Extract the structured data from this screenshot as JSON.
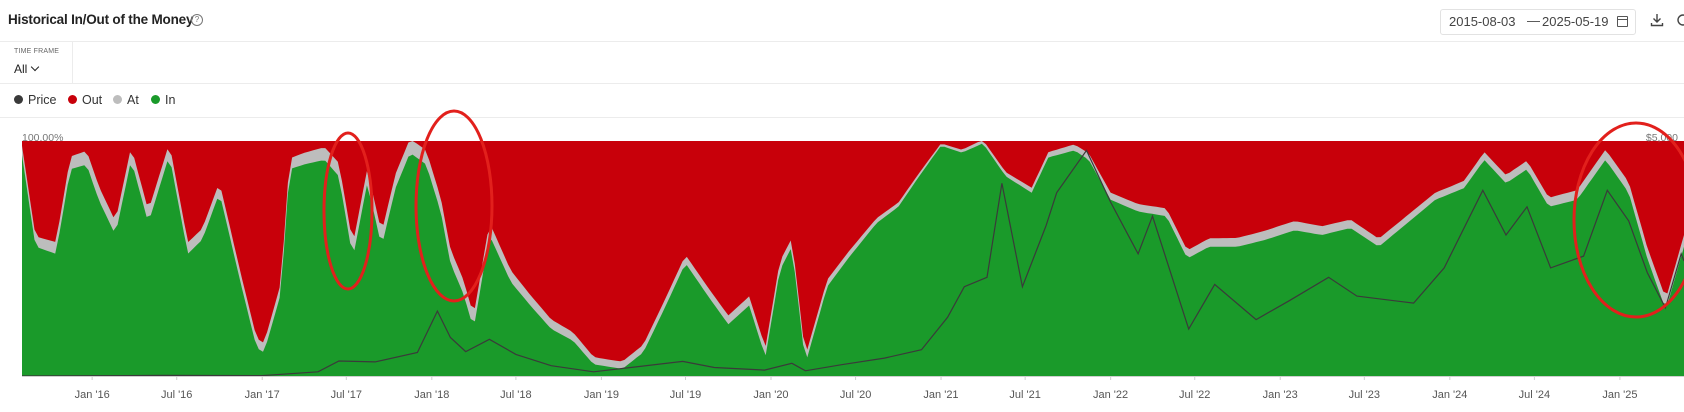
{
  "header": {
    "title": "Historical In/Out of the Money",
    "help_icon": "question-circle-icon",
    "date_start": "2015-08-03",
    "date_separator": "—",
    "date_end": "2025-05-19",
    "calendar_icon": "calendar-icon",
    "download_icon": "download-icon",
    "more_icon": "share-icon"
  },
  "controls": {
    "time_frame_label": "TIME FRAME",
    "time_frame_value": "All"
  },
  "legend": [
    {
      "label": "Price",
      "color": "#3a3a3a"
    },
    {
      "label": "Out",
      "color": "#c8000a"
    },
    {
      "label": "At",
      "color": "#bdbdbd"
    },
    {
      "label": "In",
      "color": "#1a9a2a"
    }
  ],
  "chart_data": {
    "type": "area",
    "stacking": "percent",
    "left_axis_top_label": "100.00%",
    "right_axis_top_label": "$5,000",
    "x_tick_labels": [
      "Jan '16",
      "Jul '16",
      "Jan '17",
      "Jul '17",
      "Jan '18",
      "Jul '18",
      "Jan '19",
      "Jul '19",
      "Jan '20",
      "Jul '20",
      "Jan '21",
      "Jul '21",
      "Jan '22",
      "Jul '22",
      "Jan '23",
      "Jul '23",
      "Jan '24",
      "Jul '24",
      "Jan '25"
    ],
    "x_range": [
      "2015-08-03",
      "2025-05-19"
    ],
    "y_range_percent": [
      0,
      100
    ],
    "colors": {
      "in": "#1a9a2a",
      "at": "#bdbdbd",
      "out": "#c8000a",
      "price": "#3a3a3a"
    },
    "series": [
      {
        "name": "In",
        "unit": "%",
        "points": [
          [
            "2015-08-03",
            94
          ],
          [
            "2015-09-01",
            55
          ],
          [
            "2015-10-15",
            52
          ],
          [
            "2015-11-15",
            88
          ],
          [
            "2015-12-20",
            90
          ],
          [
            "2016-01-15",
            75
          ],
          [
            "2016-02-20",
            60
          ],
          [
            "2016-03-25",
            92
          ],
          [
            "2016-05-01",
            65
          ],
          [
            "2016-06-15",
            94
          ],
          [
            "2016-07-25",
            52
          ],
          [
            "2016-08-25",
            58
          ],
          [
            "2016-10-01",
            78
          ],
          [
            "2016-11-15",
            40
          ],
          [
            "2016-12-20",
            12
          ],
          [
            "2017-01-05",
            10
          ],
          [
            "2017-02-10",
            35
          ],
          [
            "2017-03-01",
            88
          ],
          [
            "2017-04-01",
            90
          ],
          [
            "2017-05-15",
            92
          ],
          [
            "2017-06-15",
            85
          ],
          [
            "2017-07-15",
            50
          ],
          [
            "2017-08-15",
            82
          ],
          [
            "2017-09-15",
            55
          ],
          [
            "2017-10-15",
            80
          ],
          [
            "2017-11-15",
            95
          ],
          [
            "2017-12-20",
            90
          ],
          [
            "2018-01-20",
            70
          ],
          [
            "2018-02-10",
            48
          ],
          [
            "2018-03-10",
            35
          ],
          [
            "2018-04-01",
            20
          ],
          [
            "2018-05-05",
            60
          ],
          [
            "2018-06-20",
            40
          ],
          [
            "2018-08-01",
            30
          ],
          [
            "2018-09-15",
            20
          ],
          [
            "2018-11-01",
            15
          ],
          [
            "2018-12-15",
            5
          ],
          [
            "2019-01-15",
            4
          ],
          [
            "2019-02-15",
            3
          ],
          [
            "2019-04-01",
            10
          ],
          [
            "2019-05-15",
            28
          ],
          [
            "2019-07-01",
            48
          ],
          [
            "2019-08-15",
            35
          ],
          [
            "2019-10-01",
            22
          ],
          [
            "2019-11-15",
            30
          ],
          [
            "2019-12-20",
            8
          ],
          [
            "2020-01-20",
            45
          ],
          [
            "2020-02-15",
            55
          ],
          [
            "2020-03-15",
            5
          ],
          [
            "2020-05-01",
            38
          ],
          [
            "2020-06-15",
            50
          ],
          [
            "2020-08-15",
            65
          ],
          [
            "2020-10-01",
            72
          ],
          [
            "2020-11-15",
            85
          ],
          [
            "2021-01-01",
            98
          ],
          [
            "2021-02-15",
            95
          ],
          [
            "2021-04-01",
            99
          ],
          [
            "2021-05-20",
            85
          ],
          [
            "2021-07-15",
            78
          ],
          [
            "2021-08-20",
            93
          ],
          [
            "2021-10-15",
            96
          ],
          [
            "2021-11-15",
            92
          ],
          [
            "2022-01-01",
            75
          ],
          [
            "2022-03-01",
            70
          ],
          [
            "2022-05-01",
            68
          ],
          [
            "2022-06-15",
            50
          ],
          [
            "2022-08-01",
            55
          ],
          [
            "2022-10-01",
            55
          ],
          [
            "2022-12-01",
            58
          ],
          [
            "2023-02-01",
            62
          ],
          [
            "2023-04-01",
            60
          ],
          [
            "2023-06-01",
            63
          ],
          [
            "2023-08-01",
            55
          ],
          [
            "2023-10-01",
            65
          ],
          [
            "2023-12-01",
            75
          ],
          [
            "2024-02-01",
            80
          ],
          [
            "2024-03-15",
            92
          ],
          [
            "2024-05-01",
            82
          ],
          [
            "2024-06-15",
            88
          ],
          [
            "2024-08-01",
            72
          ],
          [
            "2024-10-01",
            75
          ],
          [
            "2024-12-01",
            92
          ],
          [
            "2025-01-20",
            78
          ],
          [
            "2025-03-01",
            50
          ],
          [
            "2025-04-10",
            28
          ],
          [
            "2025-05-19",
            55
          ]
        ]
      },
      {
        "name": "At",
        "unit": "%",
        "points": [
          [
            "2015-08-03",
            4
          ],
          [
            "2016-01-01",
            6
          ],
          [
            "2017-01-01",
            4
          ],
          [
            "2017-07-15",
            6
          ],
          [
            "2018-03-01",
            6
          ],
          [
            "2019-01-01",
            3
          ],
          [
            "2020-01-01",
            4
          ],
          [
            "2021-01-01",
            1
          ],
          [
            "2022-01-01",
            3
          ],
          [
            "2023-01-01",
            4
          ],
          [
            "2024-01-01",
            3
          ],
          [
            "2025-05-19",
            5
          ]
        ]
      },
      {
        "name": "Price",
        "unit": "USD",
        "points": [
          [
            "2015-08-03",
            1
          ],
          [
            "2016-06-01",
            12
          ],
          [
            "2017-01-01",
            8
          ],
          [
            "2017-05-01",
            90
          ],
          [
            "2017-06-15",
            320
          ],
          [
            "2017-09-01",
            300
          ],
          [
            "2017-12-01",
            500
          ],
          [
            "2018-01-13",
            1380
          ],
          [
            "2018-02-10",
            820
          ],
          [
            "2018-03-15",
            520
          ],
          [
            "2018-05-05",
            780
          ],
          [
            "2018-07-01",
            460
          ],
          [
            "2018-09-15",
            220
          ],
          [
            "2018-12-15",
            90
          ],
          [
            "2019-06-25",
            310
          ],
          [
            "2019-09-01",
            180
          ],
          [
            "2019-12-18",
            125
          ],
          [
            "2020-02-15",
            270
          ],
          [
            "2020-03-15",
            110
          ],
          [
            "2020-06-01",
            240
          ],
          [
            "2020-09-01",
            380
          ],
          [
            "2020-11-20",
            560
          ],
          [
            "2021-01-15",
            1250
          ],
          [
            "2021-02-20",
            1900
          ],
          [
            "2021-04-10",
            2100
          ],
          [
            "2021-05-12",
            4100
          ],
          [
            "2021-06-25",
            1900
          ],
          [
            "2021-08-15",
            3200
          ],
          [
            "2021-09-07",
            3900
          ],
          [
            "2021-11-10",
            4800
          ],
          [
            "2022-01-01",
            3700
          ],
          [
            "2022-03-01",
            2600
          ],
          [
            "2022-04-01",
            3400
          ],
          [
            "2022-06-18",
            1000
          ],
          [
            "2022-08-13",
            1950
          ],
          [
            "2022-11-10",
            1200
          ],
          [
            "2023-01-20",
            1600
          ],
          [
            "2023-04-15",
            2100
          ],
          [
            "2023-06-15",
            1700
          ],
          [
            "2023-10-15",
            1550
          ],
          [
            "2023-12-20",
            2300
          ],
          [
            "2024-03-12",
            3950
          ],
          [
            "2024-05-01",
            3000
          ],
          [
            "2024-06-15",
            3600
          ],
          [
            "2024-08-05",
            2300
          ],
          [
            "2024-10-15",
            2550
          ],
          [
            "2024-12-05",
            3950
          ],
          [
            "2025-01-20",
            3300
          ],
          [
            "2025-03-01",
            2200
          ],
          [
            "2025-04-09",
            1450
          ],
          [
            "2025-05-13",
            2600
          ],
          [
            "2025-05-19",
            2450
          ]
        ]
      }
    ],
    "annotations": [
      {
        "type": "ellipse",
        "color": "#e2201c",
        "note": "hand-drawn circle"
      },
      {
        "type": "ellipse",
        "color": "#e2201c",
        "note": "hand-drawn circle"
      },
      {
        "type": "ellipse",
        "color": "#e2201c",
        "note": "hand-drawn circle"
      }
    ]
  }
}
